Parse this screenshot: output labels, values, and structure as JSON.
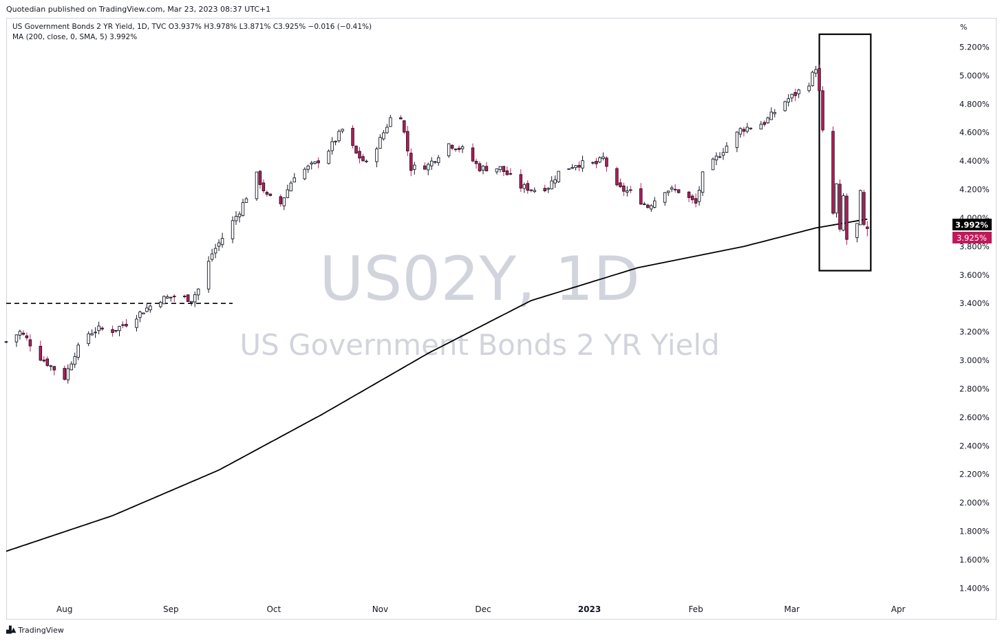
{
  "publisher_line": "Quotedian published on TradingView.com, Mar 23, 2023 08:37 UTC+1",
  "footer": {
    "logo_icon": "tradingview-logo-icon",
    "brand": "TradingView"
  },
  "legend": {
    "symbol_line": "US Government Bonds 2 YR Yield, 1D, TVC  O3.937%  H3.978%  L3.871%  C3.925%  −0.016 (−0.41%)",
    "ma_line": "MA (200, close, 0, SMA, 5)  3.992%"
  },
  "watermark": {
    "symbol": "US02Y, 1D",
    "name": "US Government Bonds 2 YR Yield"
  },
  "colors": {
    "up": "#ffffff",
    "down": "#c2185b",
    "wick": "#131722",
    "ma": "#000000",
    "price_label": "#c2185b",
    "ma_label": "#000000",
    "watermark": "#d1d4dc"
  },
  "chart_data": {
    "type": "candlestick",
    "series": [
      {
        "name": "US Government Bonds 2 YR Yield",
        "description": "Daily OHLC candles (values in %), generated from key points below"
      },
      {
        "name": "MA (200, close, 0, SMA, 5)",
        "description": "200-day simple moving average"
      }
    ],
    "x_ticks": [
      "Aug",
      "Sep",
      "Oct",
      "Nov",
      "Dec",
      "2023",
      "Feb",
      "Mar",
      "Apr"
    ],
    "x_tick_dates": [
      "2022-08-01",
      "2022-09-01",
      "2022-10-01",
      "2022-11-01",
      "2022-12-01",
      "2023-01-01",
      "2023-02-01",
      "2023-03-01",
      "2023-04-01"
    ],
    "xlim": [
      "2022-07-15",
      "2023-04-16"
    ],
    "y_ticks": [
      "1.400%",
      "1.600%",
      "1.800%",
      "2.000%",
      "2.200%",
      "2.400%",
      "2.600%",
      "2.800%",
      "3.000%",
      "3.200%",
      "3.400%",
      "3.600%",
      "3.800%",
      "4.000%",
      "4.200%",
      "4.400%",
      "4.600%",
      "4.800%",
      "5.000%",
      "5.200%"
    ],
    "y_unit": "%",
    "ylim": [
      1.32,
      5.4
    ],
    "price_path": [
      [
        "2022-07-15",
        3.13
      ],
      [
        "2022-07-19",
        3.2
      ],
      [
        "2022-07-21",
        3.15
      ],
      [
        "2022-07-25",
        3.02
      ],
      [
        "2022-07-27",
        2.98
      ],
      [
        "2022-08-01",
        2.88
      ],
      [
        "2022-08-04",
        3.05
      ],
      [
        "2022-08-08",
        3.19
      ],
      [
        "2022-08-11",
        3.22
      ],
      [
        "2022-08-15",
        3.21
      ],
      [
        "2022-08-19",
        3.26
      ],
      [
        "2022-08-24",
        3.35
      ],
      [
        "2022-08-29",
        3.43
      ],
      [
        "2022-09-02",
        3.45
      ],
      [
        "2022-09-07",
        3.43
      ],
      [
        "2022-09-09",
        3.5
      ],
      [
        "2022-09-13",
        3.75
      ],
      [
        "2022-09-16",
        3.86
      ],
      [
        "2022-09-21",
        4.05
      ],
      [
        "2022-09-26",
        4.3
      ],
      [
        "2022-09-29",
        4.15
      ],
      [
        "2022-10-03",
        4.1
      ],
      [
        "2022-10-07",
        4.3
      ],
      [
        "2022-10-13",
        4.38
      ],
      [
        "2022-10-17",
        4.48
      ],
      [
        "2022-10-21",
        4.62
      ],
      [
        "2022-10-25",
        4.45
      ],
      [
        "2022-10-28",
        4.38
      ],
      [
        "2022-11-01",
        4.55
      ],
      [
        "2022-11-04",
        4.7
      ],
      [
        "2022-11-07",
        4.72
      ],
      [
        "2022-11-10",
        4.35
      ],
      [
        "2022-11-15",
        4.37
      ],
      [
        "2022-11-21",
        4.52
      ],
      [
        "2022-11-25",
        4.48
      ],
      [
        "2022-11-30",
        4.35
      ],
      [
        "2022-12-06",
        4.35
      ],
      [
        "2022-12-12",
        4.22
      ],
      [
        "2022-12-16",
        4.2
      ],
      [
        "2022-12-20",
        4.22
      ],
      [
        "2022-12-23",
        4.32
      ],
      [
        "2022-12-28",
        4.38
      ],
      [
        "2023-01-03",
        4.38
      ],
      [
        "2023-01-05",
        4.42
      ],
      [
        "2023-01-09",
        4.21
      ],
      [
        "2023-01-13",
        4.18
      ],
      [
        "2023-01-18",
        4.08
      ],
      [
        "2023-01-23",
        4.2
      ],
      [
        "2023-01-27",
        4.19
      ],
      [
        "2023-02-01",
        4.1
      ],
      [
        "2023-02-03",
        4.3
      ],
      [
        "2023-02-08",
        4.45
      ],
      [
        "2023-02-14",
        4.62
      ],
      [
        "2023-02-21",
        4.67
      ],
      [
        "2023-02-27",
        4.82
      ],
      [
        "2023-03-02",
        4.87
      ],
      [
        "2023-03-06",
        4.95
      ],
      [
        "2023-03-08",
        5.06
      ],
      [
        "2023-03-09",
        4.88
      ],
      [
        "2023-03-10",
        4.6
      ],
      [
        "2023-03-13",
        4.03
      ],
      [
        "2023-03-14",
        4.23
      ],
      [
        "2023-03-15",
        3.9
      ],
      [
        "2023-03-16",
        4.15
      ],
      [
        "2023-03-17",
        3.85
      ],
      [
        "2023-03-20",
        3.95
      ],
      [
        "2023-03-21",
        4.17
      ],
      [
        "2023-03-22",
        3.94
      ],
      [
        "2023-03-23",
        3.925
      ]
    ],
    "ma_path": [
      [
        "2022-07-15",
        1.66
      ],
      [
        "2022-08-15",
        1.91
      ],
      [
        "2022-09-15",
        2.23
      ],
      [
        "2022-10-15",
        2.62
      ],
      [
        "2022-11-15",
        3.05
      ],
      [
        "2022-12-15",
        3.42
      ],
      [
        "2023-01-15",
        3.65
      ],
      [
        "2023-02-15",
        3.8
      ],
      [
        "2023-03-08",
        3.93
      ],
      [
        "2023-03-23",
        3.992
      ]
    ],
    "last_values": {
      "ma": "3.992%",
      "close": "3.925%"
    },
    "annotations": [
      {
        "type": "horizontal-dashed-line",
        "value": 3.4,
        "from": "2022-07-15",
        "to": "2022-09-19"
      },
      {
        "type": "rectangle",
        "from": "2023-03-09",
        "to": "2023-03-24",
        "top": 5.29,
        "bottom": 3.63
      }
    ],
    "grid": false,
    "legend_position": "top-left"
  }
}
